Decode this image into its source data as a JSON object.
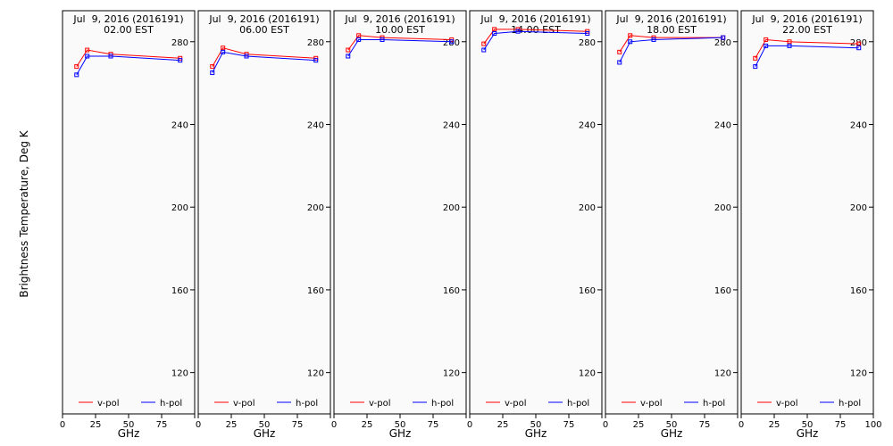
{
  "ylabel": "Brightness Temperature, Deg K",
  "xlabel": "GHz",
  "colors": {
    "v_pol": "#ff0000",
    "h_pol": "#0000ff",
    "axis": "#000000",
    "plot_bg": "#fafafa"
  },
  "chart_data": [
    {
      "type": "line",
      "title_line1": "Jul  9, 2016 (2016191)",
      "title_line2": "02.00 EST",
      "x": [
        10.65,
        18.7,
        36.5,
        89.0
      ],
      "series": [
        {
          "name": "v-pol",
          "values": [
            268,
            276,
            274,
            272
          ]
        },
        {
          "name": "h-pol",
          "values": [
            264,
            273,
            273,
            271
          ]
        }
      ],
      "xlim": [
        0,
        100
      ],
      "ylim": [
        100,
        295
      ],
      "xticks": [
        0,
        25,
        50,
        75,
        100
      ],
      "yticks": [
        120,
        160,
        200,
        240,
        280
      ]
    },
    {
      "type": "line",
      "title_line1": "Jul  9, 2016 (2016191)",
      "title_line2": "06.00 EST",
      "x": [
        10.65,
        18.7,
        36.5,
        89.0
      ],
      "series": [
        {
          "name": "v-pol",
          "values": [
            268,
            277,
            274,
            272
          ]
        },
        {
          "name": "h-pol",
          "values": [
            265,
            275,
            273,
            271
          ]
        }
      ],
      "xlim": [
        0,
        100
      ],
      "ylim": [
        100,
        295
      ],
      "xticks": [
        0,
        25,
        50,
        75,
        100
      ],
      "yticks": [
        120,
        160,
        200,
        240,
        280
      ]
    },
    {
      "type": "line",
      "title_line1": "Jul  9, 2016 (2016191)",
      "title_line2": "10.00 EST",
      "x": [
        10.65,
        18.7,
        36.5,
        89.0
      ],
      "series": [
        {
          "name": "v-pol",
          "values": [
            276,
            283,
            282,
            281
          ]
        },
        {
          "name": "h-pol",
          "values": [
            273,
            281,
            281,
            280
          ]
        }
      ],
      "xlim": [
        0,
        100
      ],
      "ylim": [
        100,
        295
      ],
      "xticks": [
        0,
        25,
        50,
        75,
        100
      ],
      "yticks": [
        120,
        160,
        200,
        240,
        280
      ]
    },
    {
      "type": "line",
      "title_line1": "Jul  9, 2016 (2016191)",
      "title_line2": "14.00 EST",
      "x": [
        10.65,
        18.7,
        36.5,
        89.0
      ],
      "series": [
        {
          "name": "v-pol",
          "values": [
            279,
            286,
            286,
            285
          ]
        },
        {
          "name": "h-pol",
          "values": [
            276,
            284,
            285,
            284
          ]
        }
      ],
      "xlim": [
        0,
        100
      ],
      "ylim": [
        100,
        295
      ],
      "xticks": [
        0,
        25,
        50,
        75,
        100
      ],
      "yticks": [
        120,
        160,
        200,
        240,
        280
      ]
    },
    {
      "type": "line",
      "title_line1": "Jul  9, 2016 (2016191)",
      "title_line2": "18.00 EST",
      "x": [
        10.65,
        18.7,
        36.5,
        89.0
      ],
      "series": [
        {
          "name": "v-pol",
          "values": [
            275,
            283,
            282,
            282
          ]
        },
        {
          "name": "h-pol",
          "values": [
            270,
            280,
            281,
            282
          ]
        }
      ],
      "xlim": [
        0,
        100
      ],
      "ylim": [
        100,
        295
      ],
      "xticks": [
        0,
        25,
        50,
        75,
        100
      ],
      "yticks": [
        120,
        160,
        200,
        240,
        280
      ]
    },
    {
      "type": "line",
      "title_line1": "Jul  9, 2016 (2016191)",
      "title_line2": "22.00 EST",
      "x": [
        10.65,
        18.7,
        36.5,
        89.0
      ],
      "series": [
        {
          "name": "v-pol",
          "values": [
            272,
            281,
            280,
            279
          ]
        },
        {
          "name": "h-pol",
          "values": [
            268,
            278,
            278,
            277
          ]
        }
      ],
      "xlim": [
        0,
        100
      ],
      "ylim": [
        100,
        295
      ],
      "xticks": [
        0,
        25,
        50,
        75,
        100
      ],
      "yticks": [
        120,
        160,
        200,
        240,
        280
      ]
    }
  ]
}
